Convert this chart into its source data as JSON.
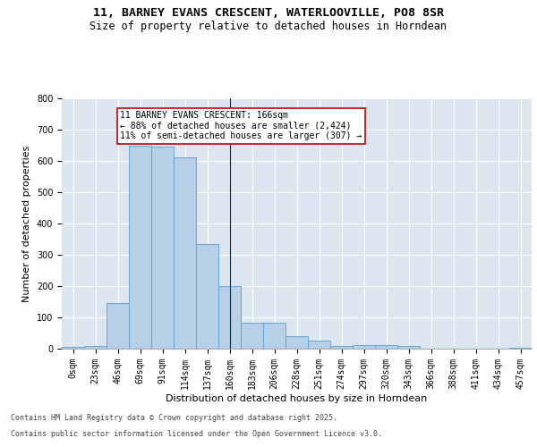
{
  "title_line1": "11, BARNEY EVANS CRESCENT, WATERLOOVILLE, PO8 8SR",
  "title_line2": "Size of property relative to detached houses in Horndean",
  "xlabel": "Distribution of detached houses by size in Horndean",
  "ylabel": "Number of detached properties",
  "bar_color": "#b8cfe8",
  "bar_edge_color": "#5a9fd4",
  "background_color": "#dce6f0",
  "grid_color": "#ffffff",
  "categories": [
    "0sqm",
    "23sqm",
    "46sqm",
    "69sqm",
    "91sqm",
    "114sqm",
    "137sqm",
    "160sqm",
    "183sqm",
    "206sqm",
    "228sqm",
    "251sqm",
    "274sqm",
    "297sqm",
    "320sqm",
    "343sqm",
    "366sqm",
    "388sqm",
    "411sqm",
    "434sqm",
    "457sqm"
  ],
  "values": [
    5,
    8,
    145,
    648,
    645,
    612,
    335,
    200,
    84,
    84,
    40,
    25,
    10,
    11,
    11,
    8,
    0,
    0,
    0,
    0,
    4
  ],
  "ylim": [
    0,
    800
  ],
  "yticks": [
    0,
    100,
    200,
    300,
    400,
    500,
    600,
    700,
    800
  ],
  "property_line_x": 7,
  "annotation_text": "11 BARNEY EVANS CRESCENT: 166sqm\n← 88% of detached houses are smaller (2,424)\n11% of semi-detached houses are larger (307) →",
  "annotation_box_color": "#ffffff",
  "annotation_border_color": "#cc0000",
  "footer_line1": "Contains HM Land Registry data © Crown copyright and database right 2025.",
  "footer_line2": "Contains public sector information licensed under the Open Government Licence v3.0.",
  "title_fontsize": 9.5,
  "subtitle_fontsize": 8.5,
  "axis_label_fontsize": 8,
  "tick_fontsize": 7,
  "annotation_fontsize": 7,
  "footer_fontsize": 6
}
